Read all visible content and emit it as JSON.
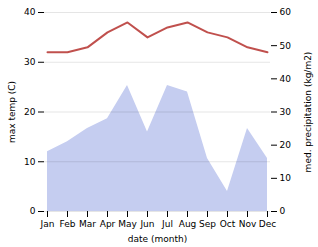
{
  "chart_data": {
    "type": "line",
    "categories": [
      "Jan",
      "Feb",
      "Mar",
      "Apr",
      "May",
      "Jun",
      "Jul",
      "Aug",
      "Sep",
      "Oct",
      "Nov",
      "Dec"
    ],
    "xlabel": "date (month)",
    "ylabel": "max temp (C)",
    "y2label": "med. precipitation (kg/m2)",
    "series": [
      {
        "type": "area",
        "axis": "y2",
        "color": "#c5cdf0",
        "values": [
          18,
          21,
          25,
          28,
          38,
          24,
          38,
          36,
          16,
          6,
          25,
          16
        ]
      },
      {
        "type": "line",
        "color": "#c0504d",
        "values": [
          32,
          32,
          33,
          36,
          38,
          35,
          37,
          38,
          36,
          35,
          33,
          32
        ]
      }
    ],
    "ylim": [
      0,
      40
    ],
    "yticks": [
      0,
      10,
      20,
      30,
      40
    ],
    "y2lim": [
      0,
      60
    ],
    "y2ticks": [
      0,
      10,
      20,
      30,
      40,
      50,
      60
    ],
    "grid": true
  }
}
